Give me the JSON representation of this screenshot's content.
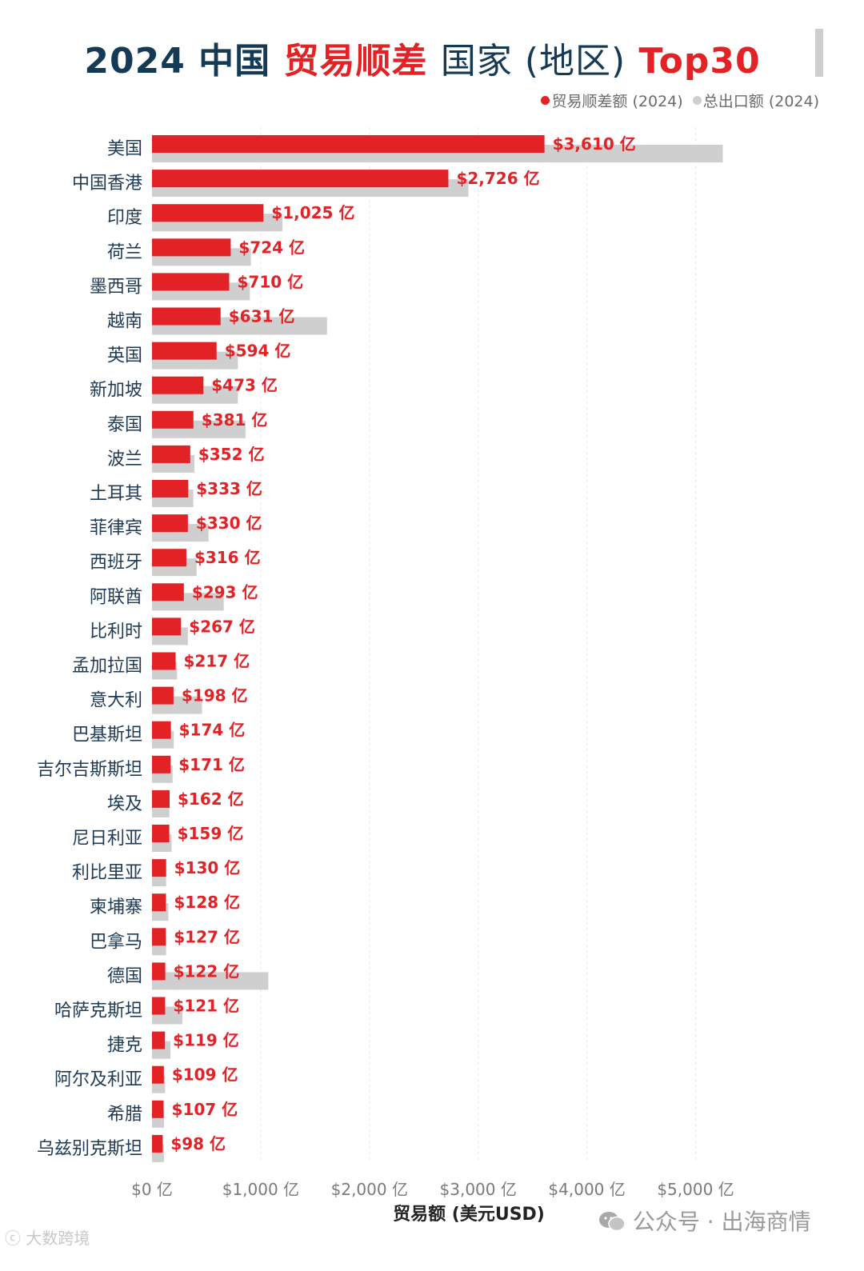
{
  "title": {
    "part1": "2024 中国",
    "part2": "贸易顺差",
    "part3": "国家 (地区)",
    "part4": "Top30"
  },
  "legend": {
    "surplus": "贸易顺差额 (2024)",
    "exports": "总出口额 (2024)"
  },
  "colors": {
    "surplus": "#e32226",
    "exports": "#cfcfcf",
    "title": "#153a55"
  },
  "chart_data": {
    "type": "bar",
    "orientation": "horizontal",
    "categories": [
      "美国",
      "中国香港",
      "印度",
      "荷兰",
      "墨西哥",
      "越南",
      "英国",
      "新加坡",
      "泰国",
      "波兰",
      "土耳其",
      "菲律宾",
      "西班牙",
      "阿联酋",
      "比利时",
      "孟加拉国",
      "意大利",
      "巴基斯坦",
      "吉尔吉斯斯坦",
      "埃及",
      "尼日利亚",
      "利比里亚",
      "柬埔寨",
      "巴拿马",
      "德国",
      "哈萨克斯坦",
      "捷克",
      "阿尔及利亚",
      "希腊",
      "乌兹别克斯坦"
    ],
    "series": [
      {
        "name": "贸易顺差额 (2024)",
        "values": [
          3610,
          2726,
          1025,
          724,
          710,
          631,
          594,
          473,
          381,
          352,
          333,
          330,
          316,
          293,
          267,
          217,
          198,
          174,
          171,
          162,
          159,
          130,
          128,
          127,
          122,
          121,
          119,
          109,
          107,
          98
        ]
      },
      {
        "name": "总出口额 (2024)",
        "values": [
          5250,
          2910,
          1200,
          910,
          900,
          1610,
          790,
          790,
          860,
          390,
          380,
          520,
          410,
          660,
          330,
          230,
          460,
          200,
          190,
          160,
          180,
          130,
          150,
          130,
          1070,
          280,
          170,
          120,
          110,
          110
        ]
      }
    ],
    "data_labels": [
      "$3,610 亿",
      "$2,726 亿",
      "$1,025 亿",
      "$724 亿",
      "$710 亿",
      "$631 亿",
      "$594 亿",
      "$473 亿",
      "$381 亿",
      "$352 亿",
      "$333 亿",
      "$330 亿",
      "$316 亿",
      "$293 亿",
      "$267 亿",
      "$217 亿",
      "$198 亿",
      "$174 亿",
      "$171 亿",
      "$162 亿",
      "$159 亿",
      "$130 亿",
      "$128 亿",
      "$127 亿",
      "$122 亿",
      "$121 亿",
      "$119 亿",
      "$109 亿",
      "$107 亿",
      "$98 亿"
    ],
    "x_ticks": [
      0,
      1000,
      2000,
      3000,
      4000,
      5000
    ],
    "x_tick_labels": [
      "$0 亿",
      "$1,000 亿",
      "$2,000 亿",
      "$3,000 亿",
      "$4,000 亿",
      "$5,000 亿"
    ],
    "xlabel": "贸易额 (美元USD)",
    "xlim": [
      0,
      5400
    ],
    "grid": true,
    "legend_position": "top-right"
  },
  "watermark": {
    "account": "公众号 · 出海商情",
    "brand": "大数跨境"
  }
}
